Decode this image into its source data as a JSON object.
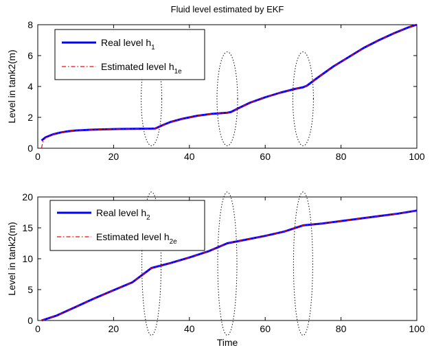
{
  "chart_data": [
    {
      "type": "line",
      "title": "Fluid level estimated by EKF",
      "xlabel": "",
      "ylabel": "Level in tank2(m)",
      "xlim": [
        0,
        100
      ],
      "ylim": [
        0,
        8
      ],
      "xticks": [
        0,
        20,
        40,
        60,
        80,
        100
      ],
      "yticks": [
        0,
        2,
        4,
        6,
        8
      ],
      "grid": false,
      "legend_position": "top-left",
      "legend": [
        {
          "text": "Real level h",
          "sub": "1"
        },
        {
          "text": "Estimated level h",
          "sub": "1e"
        }
      ],
      "series": [
        {
          "name": "Real level h1",
          "color": "#0000ff",
          "style": "solid",
          "x": [
            1,
            2,
            4,
            6,
            8,
            10,
            14,
            18,
            22,
            26,
            30,
            31,
            33,
            35,
            38,
            42,
            46,
            50,
            51,
            53,
            56,
            60,
            64,
            68,
            70,
            71,
            74,
            78,
            82,
            86,
            90,
            94,
            98,
            100
          ],
          "y": [
            0.5,
            0.7,
            0.9,
            1.02,
            1.1,
            1.15,
            1.2,
            1.23,
            1.25,
            1.26,
            1.27,
            1.28,
            1.5,
            1.7,
            1.9,
            2.1,
            2.23,
            2.3,
            2.35,
            2.6,
            2.95,
            3.3,
            3.6,
            3.85,
            3.95,
            4.05,
            4.6,
            5.3,
            5.9,
            6.5,
            7.0,
            7.45,
            7.85,
            8.0
          ]
        },
        {
          "name": "Estimated level h1e",
          "color": "#ff0000",
          "style": "dashdot",
          "x": [
            1,
            1.3,
            2,
            4,
            6,
            8,
            10,
            14,
            18,
            22,
            26,
            30,
            31,
            33,
            35,
            38,
            42,
            46,
            50,
            51,
            53,
            56,
            60,
            64,
            68,
            70,
            71,
            74,
            78,
            82,
            86,
            90,
            94,
            98,
            100
          ],
          "y": [
            0.0,
            0.4,
            0.65,
            0.9,
            1.02,
            1.1,
            1.15,
            1.2,
            1.23,
            1.25,
            1.26,
            1.27,
            1.28,
            1.5,
            1.7,
            1.9,
            2.1,
            2.23,
            2.3,
            2.35,
            2.6,
            2.95,
            3.3,
            3.6,
            3.85,
            3.95,
            4.05,
            4.6,
            5.3,
            5.9,
            6.5,
            7.0,
            7.45,
            7.85,
            8.0
          ]
        }
      ]
    },
    {
      "type": "line",
      "title": "",
      "xlabel": "Time",
      "ylabel": "Level in tank2(m)",
      "xlim": [
        0,
        100
      ],
      "ylim": [
        0,
        20
      ],
      "xticks": [
        0,
        20,
        40,
        60,
        80,
        100
      ],
      "yticks": [
        0,
        5,
        10,
        15,
        20
      ],
      "grid": false,
      "legend_position": "top-left",
      "legend": [
        {
          "text": "Real level h",
          "sub": "2"
        },
        {
          "text": "Estimated level h",
          "sub": "2e"
        }
      ],
      "series": [
        {
          "name": "Real level h2",
          "color": "#0000ff",
          "style": "solid",
          "x": [
            1,
            5,
            10,
            15,
            20,
            25,
            30,
            35,
            40,
            45,
            50,
            55,
            60,
            65,
            70,
            75,
            80,
            85,
            90,
            95,
            100
          ],
          "y": [
            0.0,
            0.8,
            2.2,
            3.6,
            4.9,
            6.2,
            8.5,
            9.3,
            10.2,
            11.2,
            12.5,
            13.1,
            13.7,
            14.4,
            15.4,
            15.7,
            16.1,
            16.5,
            16.9,
            17.3,
            17.8
          ]
        },
        {
          "name": "Estimated level h2e",
          "color": "#ff0000",
          "style": "dashdot",
          "x": [
            1,
            5,
            10,
            15,
            20,
            25,
            30,
            35,
            40,
            45,
            50,
            55,
            60,
            65,
            70,
            75,
            80,
            85,
            90,
            95,
            100
          ],
          "y": [
            0.0,
            0.8,
            2.2,
            3.6,
            4.9,
            6.2,
            8.5,
            9.3,
            10.2,
            11.2,
            12.5,
            13.1,
            13.7,
            14.4,
            15.4,
            15.7,
            16.1,
            16.5,
            16.9,
            17.3,
            17.8
          ]
        }
      ],
      "annotations_x": [
        30,
        50,
        70
      ]
    }
  ],
  "annotations": {
    "top_ellipses_x": [
      30,
      50,
      70
    ],
    "bottom_ellipses_x": [
      30,
      50,
      70
    ]
  }
}
